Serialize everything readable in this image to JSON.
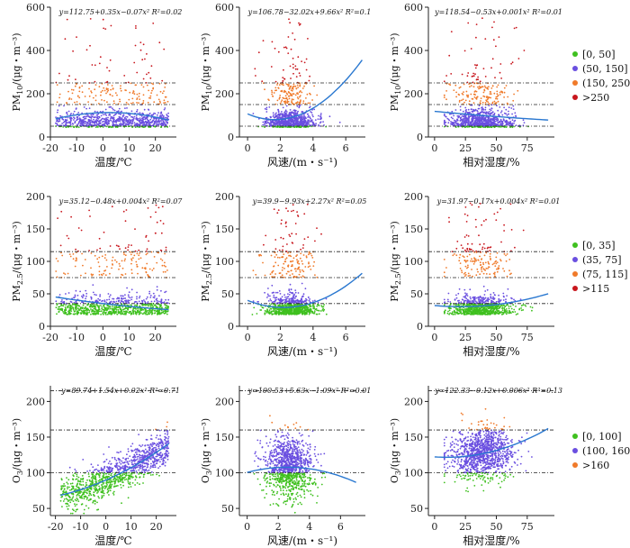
{
  "colors": {
    "green": "#3fc01f",
    "purple": "#6a4fe0",
    "orange": "#f07a2a",
    "red": "#c8161d",
    "fit": "#2a78d0"
  },
  "legends": [
    {
      "row": 0,
      "entries": [
        "[0, 50]",
        "(50, 150]",
        "(150, 250]",
        ">250"
      ]
    },
    {
      "row": 1,
      "entries": [
        "[0, 35]",
        "(35, 75]",
        "(75, 115]",
        ">115"
      ]
    },
    {
      "row": 2,
      "entries": [
        "[0, 100]",
        "(100, 160]",
        ">160"
      ]
    }
  ],
  "chart_data": [
    {
      "type": "scatter",
      "row": 0,
      "col": 0,
      "xlabel": "温度/℃",
      "ylabel_main": "PM",
      "ylabel_sub": "10",
      "ylabel_unit": "/(μg・m⁻³)",
      "eq": "y=112.75+0.35x−0.07x²   R²=0.02",
      "xlim": [
        -20,
        28
      ],
      "ylim": [
        0,
        600
      ],
      "xticks": [
        -20,
        -10,
        0,
        10,
        20
      ],
      "yticks": [
        0,
        200,
        400,
        600
      ],
      "hlines": [
        50,
        150,
        250
      ],
      "fit": [
        112.75,
        0.35,
        -0.07
      ],
      "fit_range": [
        -18,
        25
      ]
    },
    {
      "type": "scatter",
      "row": 0,
      "col": 1,
      "xlabel": "风速/(m・s⁻¹)",
      "ylabel_main": "PM",
      "ylabel_sub": "10",
      "ylabel_unit": "/(μg・m⁻³)",
      "eq": "y=106.78−32.02x+9.66x²   R²=0.1",
      "xlim": [
        -0.5,
        7.2
      ],
      "ylim": [
        0,
        600
      ],
      "xticks": [
        0,
        2,
        4,
        6
      ],
      "yticks": [
        0,
        200,
        400,
        600
      ],
      "hlines": [
        50,
        150,
        250
      ],
      "fit": [
        106.78,
        -32.02,
        9.66
      ],
      "fit_range": [
        0,
        7
      ]
    },
    {
      "type": "scatter",
      "row": 0,
      "col": 2,
      "xlabel": "相对湿度/%",
      "ylabel_main": "PM",
      "ylabel_sub": "10",
      "ylabel_unit": "/(μg・m⁻³)",
      "eq": "y=118.54−0.53x+0.001x²   R²=0.01",
      "xlim": [
        -5,
        97
      ],
      "ylim": [
        0,
        600
      ],
      "xticks": [
        0,
        25,
        50,
        75
      ],
      "yticks": [
        0,
        200,
        400,
        600
      ],
      "hlines": [
        50,
        150,
        250
      ],
      "fit": [
        118.54,
        -0.53,
        0.001
      ],
      "fit_range": [
        0,
        92
      ]
    },
    {
      "type": "scatter",
      "row": 1,
      "col": 0,
      "xlabel": "温度/℃",
      "ylabel_main": "PM",
      "ylabel_sub": "2.5",
      "ylabel_unit": "/(μg・m⁻³)",
      "eq": "y=35.12−0.48x+0.004x²   R²=0.07",
      "xlim": [
        -20,
        28
      ],
      "ylim": [
        0,
        200
      ],
      "xticks": [
        -20,
        -10,
        0,
        10,
        20
      ],
      "yticks": [
        0,
        50,
        100,
        150,
        200
      ],
      "hlines": [
        35,
        75,
        115
      ],
      "fit": [
        35.12,
        -0.48,
        0.004
      ],
      "fit_range": [
        -18,
        25
      ]
    },
    {
      "type": "scatter",
      "row": 1,
      "col": 1,
      "xlabel": "风速/(m・s⁻¹)",
      "ylabel_main": "PM",
      "ylabel_sub": "2.5",
      "ylabel_unit": "/(μg・m⁻³)",
      "eq": "y=39.9−9.93x+2.27x²   R²=0.05",
      "xlim": [
        -0.5,
        7.2
      ],
      "ylim": [
        0,
        200
      ],
      "xticks": [
        0,
        2,
        4,
        6
      ],
      "yticks": [
        0,
        50,
        100,
        150,
        200
      ],
      "hlines": [
        35,
        75,
        115
      ],
      "fit": [
        39.9,
        -9.93,
        2.27
      ],
      "fit_range": [
        0,
        7
      ]
    },
    {
      "type": "scatter",
      "row": 1,
      "col": 2,
      "xlabel": "相对湿度/%",
      "ylabel_main": "PM",
      "ylabel_sub": "2.5",
      "ylabel_unit": "/(μg・m⁻³)",
      "eq": "y=31.97−0.17x+0.004x²   R²=0.01",
      "xlim": [
        -5,
        97
      ],
      "ylim": [
        0,
        200
      ],
      "xticks": [
        0,
        25,
        50,
        75
      ],
      "yticks": [
        0,
        50,
        100,
        150,
        200
      ],
      "hlines": [
        35,
        75,
        115
      ],
      "fit": [
        31.97,
        -0.17,
        0.004
      ],
      "fit_range": [
        0,
        92
      ]
    },
    {
      "type": "scatter",
      "row": 2,
      "col": 0,
      "xlabel": "温度/℃",
      "ylabel_main": "O",
      "ylabel_sub": "3",
      "ylabel_unit": "/(μg・m⁻³)",
      "eq": "y=89.74+1.54x+0.02x²   R²=0.71",
      "xlim": [
        -22,
        28
      ],
      "ylim": [
        40,
        222
      ],
      "xticks": [
        -20,
        -10,
        0,
        10,
        20
      ],
      "yticks": [
        50,
        100,
        150,
        200
      ],
      "hlines": [
        100,
        160,
        215
      ],
      "fit": [
        89.74,
        1.54,
        0.02
      ],
      "fit_range": [
        -18,
        25
      ]
    },
    {
      "type": "scatter",
      "row": 2,
      "col": 1,
      "xlabel": "风速/(m・s⁻¹)",
      "ylabel_main": "O",
      "ylabel_sub": "3",
      "ylabel_unit": "/(μg・m⁻³)",
      "eq": "y=100.53+5.63x−1.09x²   R²=0.01",
      "xlim": [
        -0.5,
        7.6
      ],
      "ylim": [
        40,
        222
      ],
      "xticks": [
        0,
        2,
        4,
        6
      ],
      "yticks": [
        50,
        100,
        150,
        200
      ],
      "hlines": [
        100,
        160,
        215
      ],
      "fit": [
        100.53,
        5.63,
        -1.09
      ],
      "fit_range": [
        0,
        7
      ]
    },
    {
      "type": "scatter",
      "row": 2,
      "col": 2,
      "xlabel": "相对湿度/%",
      "ylabel_main": "O",
      "ylabel_sub": "3",
      "ylabel_unit": "/(μg・m⁻³)",
      "eq": "y=122.33−0.12x+0.006x²   R²=0.13",
      "xlim": [
        -5,
        97
      ],
      "ylim": [
        40,
        222
      ],
      "xticks": [
        0,
        25,
        50,
        75
      ],
      "yticks": [
        50,
        100,
        150,
        200
      ],
      "hlines": [
        100,
        160,
        215
      ],
      "fit": [
        122.33,
        -0.12,
        0.006
      ],
      "fit_range": [
        0,
        92
      ]
    }
  ]
}
